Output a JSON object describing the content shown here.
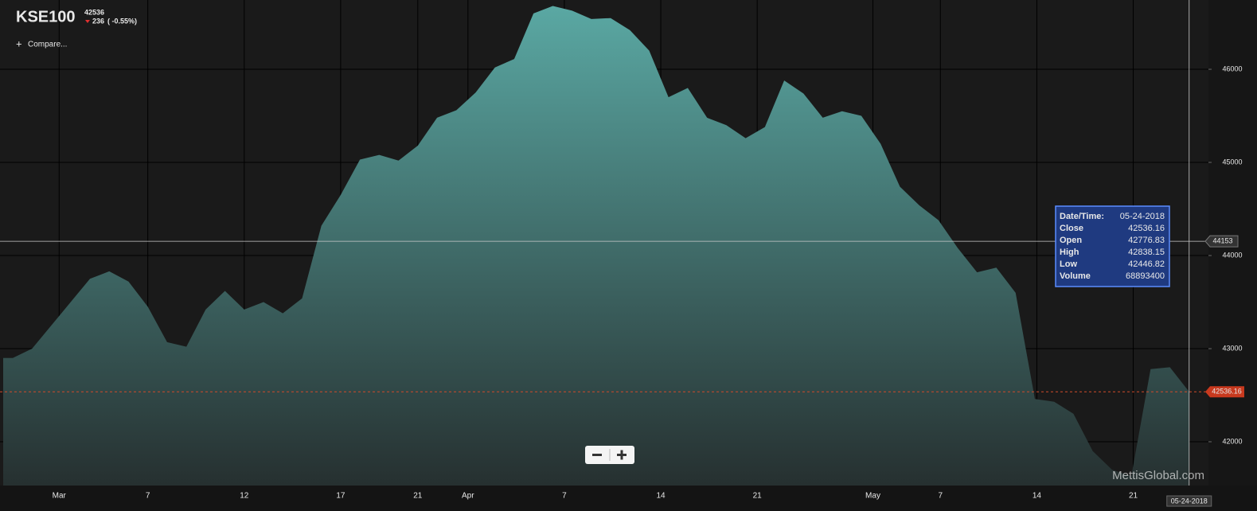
{
  "header": {
    "symbol": "KSE100",
    "price": "42536",
    "change": "236",
    "change_pct": "( -0.55%)",
    "compare": "Compare..."
  },
  "chart_data": {
    "type": "area",
    "x": [
      0,
      1,
      2,
      3,
      4,
      5,
      6,
      7,
      8,
      9,
      10,
      11,
      12,
      13,
      14,
      15,
      16,
      17,
      18,
      19,
      20,
      21,
      22,
      23,
      24,
      25,
      26,
      27,
      28,
      29,
      30,
      31,
      32,
      33,
      34,
      35,
      36,
      37,
      38,
      39,
      40,
      41,
      42,
      43,
      44,
      45,
      46,
      47,
      48,
      49,
      50,
      51,
      52,
      53,
      54,
      55,
      56,
      57,
      58,
      59,
      60,
      61
    ],
    "series": [
      {
        "name": "KSE100",
        "color": "#5aa8a3",
        "values": [
          42900,
          43000,
          43250,
          43500,
          43750,
          43830,
          43720,
          43450,
          43070,
          43020,
          43420,
          43620,
          43420,
          43500,
          43380,
          43540,
          44320,
          44650,
          45030,
          45080,
          45020,
          45180,
          45480,
          45560,
          45750,
          46020,
          46110,
          46600,
          46680,
          46630,
          46540,
          46550,
          46420,
          46200,
          45700,
          45800,
          45480,
          45400,
          45260,
          45380,
          45880,
          45740,
          45480,
          45550,
          45500,
          45200,
          44740,
          44540,
          44380,
          44080,
          43820,
          43870,
          43600,
          42460,
          42430,
          42300,
          41900,
          41700,
          41630,
          42780,
          42800,
          42536.16
        ]
      }
    ],
    "xlim": [
      -0.5,
      62
    ],
    "xticks": [
      {
        "value": 2.4,
        "label": "Mar"
      },
      7,
      12,
      17,
      21,
      {
        "value": 23.6,
        "label": "Apr"
      },
      {
        "value": 28.6,
        "label": "7"
      },
      {
        "value": 33.6,
        "label": "14"
      },
      {
        "value": 38.6,
        "label": "21"
      },
      {
        "value": 44.6,
        "label": "May"
      },
      {
        "value": 48.1,
        "label": "7"
      },
      {
        "value": 53.1,
        "label": "14"
      },
      {
        "value": 58.1,
        "label": "21"
      }
    ],
    "ylim": [
      41530,
      46744
    ],
    "yticks": [
      42000,
      43000,
      44000,
      45000,
      46000
    ],
    "grid": true,
    "last_price": 42536.16,
    "crosshair_price": 44153,
    "crosshair_date": "05-24-2018",
    "watermark": "MettisGlobal.com"
  },
  "tooltip": {
    "rows": [
      [
        "Date/Time:",
        "05-24-2018"
      ],
      [
        "Close",
        "42536.16"
      ],
      [
        "Open",
        "42776.83"
      ],
      [
        "High",
        "42838.15"
      ],
      [
        "Low",
        "42446.82"
      ],
      [
        "Volume",
        "68893400"
      ]
    ]
  }
}
